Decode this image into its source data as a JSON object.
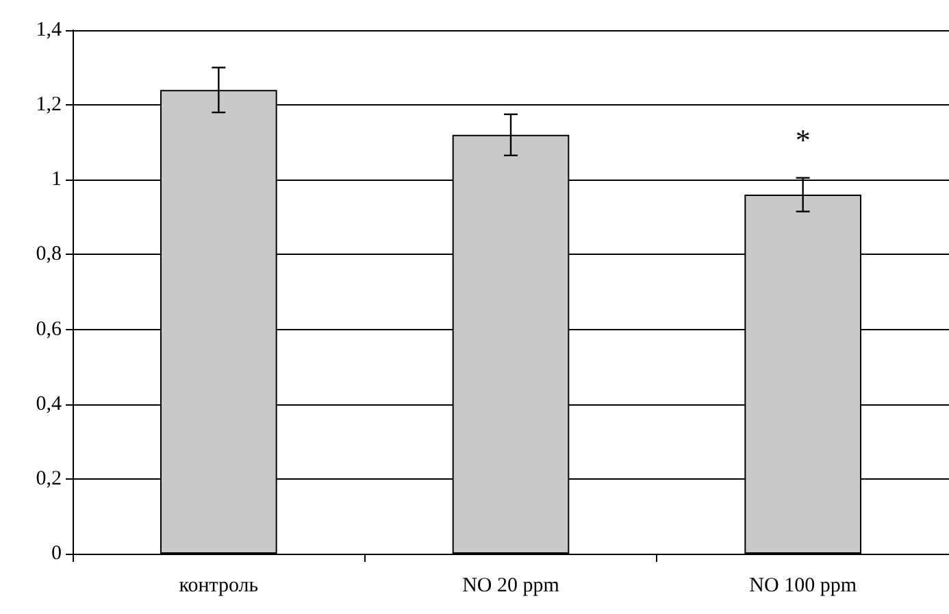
{
  "chart_data": {
    "type": "bar",
    "categories": [
      "контроль",
      "NO 20 ppm",
      "NO 100 ppm"
    ],
    "values": [
      1.24,
      1.12,
      0.96
    ],
    "errors": [
      0.06,
      0.055,
      0.045
    ],
    "color": "#c8c9cb",
    "ylim": [
      0,
      1.4
    ],
    "yticks": [
      0,
      {
        "value": 0.2,
        "label": "0,2"
      },
      {
        "value": 0.4,
        "label": "0,4"
      },
      {
        "value": 0.6,
        "label": "0,6"
      },
      {
        "value": 0.8,
        "label": "0,8"
      },
      1,
      {
        "value": 1.2,
        "label": "1,2"
      },
      {
        "value": 1.4,
        "label": "1,4"
      }
    ],
    "grid": "y",
    "annotations": [
      "*"
    ]
  }
}
